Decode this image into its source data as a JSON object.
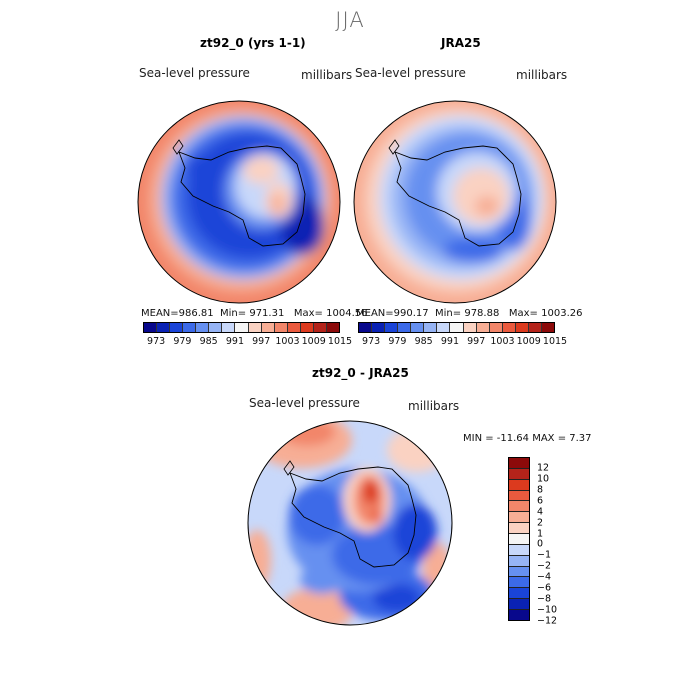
{
  "season": "JJA",
  "panels": {
    "model": {
      "title": "zt92_0 (yrs 1-1)",
      "variable": "Sea-level pressure",
      "units": "millibars",
      "stats": {
        "mean_label": "MEAN=",
        "mean": "986.81",
        "min_label": "Min=",
        "min": "971.31",
        "max_label": "Max=",
        "max": "1004.56"
      }
    },
    "obs": {
      "title": "JRA25",
      "variable": "Sea-level pressure",
      "units": "millibars",
      "stats": {
        "mean_label": "MEAN=",
        "mean": "990.17",
        "min_label": "Min=",
        "min": "978.88",
        "max_label": "Max=",
        "max": "1003.26"
      }
    },
    "diff": {
      "title": "zt92_0 - JRA25",
      "variable": "Sea-level pressure",
      "units": "millibars",
      "stats_text": "MIN = -11.64  MAX =   7.37"
    }
  },
  "chart_data": [
    {
      "type": "heatmap",
      "projection": "south-polar-stereographic",
      "title": "zt92_0 (yrs 1-1)",
      "variable": "Sea-level pressure",
      "units": "millibars",
      "mean": 986.81,
      "min": 971.31,
      "max": 1004.56,
      "colorbar_ticks": [
        "973",
        "979",
        "985",
        "991",
        "997",
        "1003",
        "1009",
        "1015"
      ],
      "colors": [
        "#08088c",
        "#0a22b4",
        "#1a44d8",
        "#3c6ae8",
        "#6690f0",
        "#96b4f5",
        "#c8d8fa",
        "#f5f5f5",
        "#fad2c2",
        "#f7ae95",
        "#f2866a",
        "#ea5a3e",
        "#dc3a1e",
        "#b4231a",
        "#8c0a0a"
      ]
    },
    {
      "type": "heatmap",
      "projection": "south-polar-stereographic",
      "title": "JRA25",
      "variable": "Sea-level pressure",
      "units": "millibars",
      "mean": 990.17,
      "min": 978.88,
      "max": 1003.26,
      "colorbar_ticks": [
        "973",
        "979",
        "985",
        "991",
        "997",
        "1003",
        "1009",
        "1015"
      ],
      "colors": [
        "#08088c",
        "#0a22b4",
        "#1a44d8",
        "#3c6ae8",
        "#6690f0",
        "#96b4f5",
        "#c8d8fa",
        "#f5f5f5",
        "#fad2c2",
        "#f7ae95",
        "#f2866a",
        "#ea5a3e",
        "#dc3a1e",
        "#b4231a",
        "#8c0a0a"
      ]
    },
    {
      "type": "heatmap",
      "projection": "south-polar-stereographic",
      "title": "zt92_0 - JRA25",
      "variable": "Sea-level pressure",
      "units": "millibars",
      "min": -11.64,
      "max": 7.37,
      "colorbar_ticks": [
        "12",
        "10",
        "8",
        "6",
        "4",
        "2",
        "1",
        "0",
        "−1",
        "−2",
        "−4",
        "−6",
        "−8",
        "−10",
        "−12"
      ],
      "colors": [
        "#8c0a0a",
        "#b4231a",
        "#dc3a1e",
        "#ea5a3e",
        "#f2866a",
        "#f7ae95",
        "#fad2c2",
        "#f5f5f5",
        "#c8d8fa",
        "#96b4f5",
        "#6690f0",
        "#3c6ae8",
        "#1a44d8",
        "#0a22b4",
        "#08088c"
      ]
    }
  ]
}
